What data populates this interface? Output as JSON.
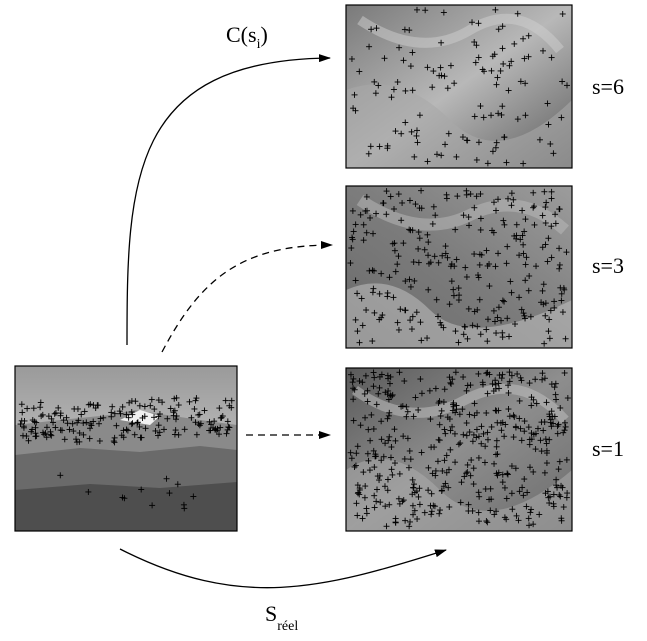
{
  "labels": {
    "mapping": "C(s",
    "mapping_sub": "i",
    "mapping_close": ")",
    "scale_real": "S",
    "scale_real_sub": "réel",
    "scale_6": "s=6",
    "scale_3": "s=3",
    "scale_1": "s=1"
  },
  "colors": {
    "ink": "#000000",
    "sky_light": "#d9d9d9",
    "sky_dark": "#9a9a9a",
    "mountain": "#6e6e6e",
    "ground": "#4a4a4a",
    "cloud_texture": "#8a8a8a"
  },
  "images": [
    {
      "id": "original",
      "content": "mountain landscape with detected keypoints"
    },
    {
      "id": "scale-6",
      "scale": 6,
      "content": "zoomed texture with sparse keypoints"
    },
    {
      "id": "scale-3",
      "scale": 3,
      "content": "zoomed texture with medium keypoint density"
    },
    {
      "id": "scale-1",
      "scale": 1,
      "content": "zoomed texture with dense keypoints"
    }
  ],
  "arrows": [
    {
      "id": "arrow-to-s6",
      "style": "solid",
      "label": "C(s_i)"
    },
    {
      "id": "arrow-to-s3",
      "style": "dashed"
    },
    {
      "id": "arrow-to-s1",
      "style": "dashed"
    },
    {
      "id": "arrow-bottom",
      "style": "solid",
      "label": "S_réel"
    }
  ]
}
